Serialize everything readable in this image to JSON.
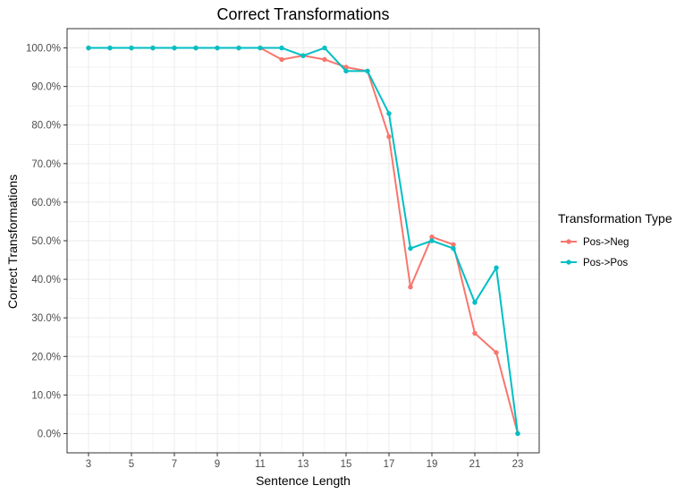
{
  "chart_data": {
    "type": "line",
    "title": "Correct Transformations",
    "xlabel": "Sentence Length",
    "ylabel": "Correct Transformations",
    "xlim": [
      2,
      24
    ],
    "ylim": [
      -0.05,
      1.05
    ],
    "x_ticks": [
      3,
      5,
      7,
      9,
      11,
      13,
      15,
      17,
      19,
      21,
      23
    ],
    "x_tick_labels": [
      "3",
      "5",
      "7",
      "9",
      "11",
      "13",
      "15",
      "17",
      "19",
      "21",
      "23"
    ],
    "y_ticks": [
      0,
      0.1,
      0.2,
      0.3,
      0.4,
      0.5,
      0.6,
      0.7,
      0.8,
      0.9,
      1.0
    ],
    "y_tick_labels": [
      "0.0%",
      "10.0%",
      "20.0%",
      "30.0%",
      "40.0%",
      "50.0%",
      "60.0%",
      "70.0%",
      "80.0%",
      "90.0%",
      "100.0%"
    ],
    "grid": true,
    "legend_title": "Transformation Type",
    "legend_position": "right",
    "x": [
      3,
      4,
      5,
      6,
      7,
      8,
      9,
      10,
      11,
      12,
      13,
      14,
      15,
      16,
      17,
      18,
      19,
      20,
      21,
      22,
      23
    ],
    "series": [
      {
        "name": "Pos->Neg",
        "color": "#f8766d",
        "values": [
          1.0,
          1.0,
          1.0,
          1.0,
          1.0,
          1.0,
          1.0,
          1.0,
          1.0,
          0.97,
          0.98,
          0.97,
          0.95,
          0.94,
          0.77,
          0.38,
          0.51,
          0.49,
          0.26,
          0.21,
          0.0
        ]
      },
      {
        "name": "Pos->Pos",
        "color": "#00bfc4",
        "values": [
          1.0,
          1.0,
          1.0,
          1.0,
          1.0,
          1.0,
          1.0,
          1.0,
          1.0,
          1.0,
          0.98,
          1.0,
          0.94,
          0.94,
          0.83,
          0.48,
          0.5,
          0.48,
          0.34,
          0.43,
          0.0
        ]
      }
    ]
  }
}
